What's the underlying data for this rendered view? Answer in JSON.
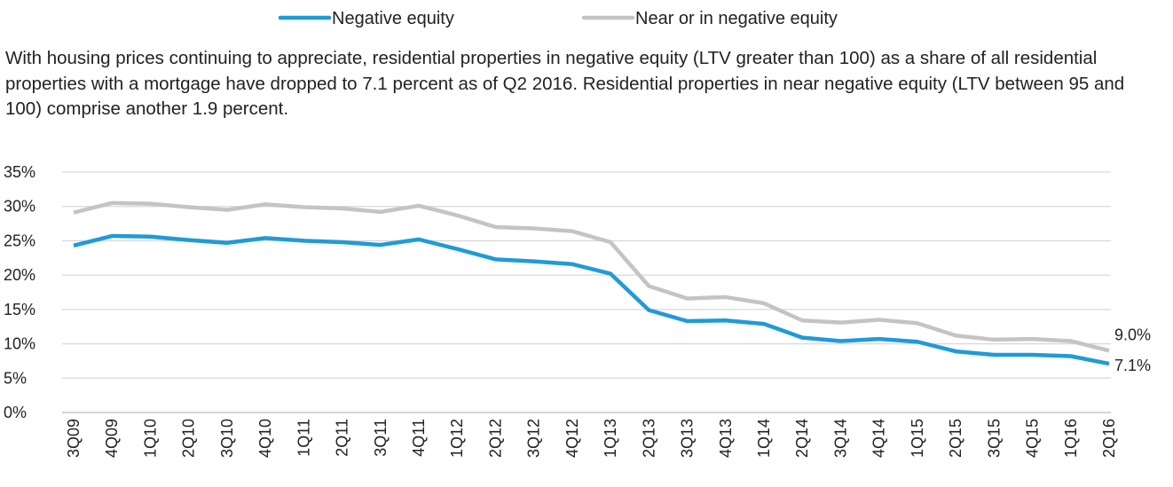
{
  "chart_data": {
    "type": "line",
    "subtitle": "With housing prices continuing to appreciate, residential properties in negative equity (LTV greater than 100) as a share of all residential properties with a mortgage have dropped to 7.1 percent as of Q2 2016. Residential properties in near negative equity (LTV between 95 and 100) comprise another 1.9 percent.",
    "categories": [
      "3Q09",
      "4Q09",
      "1Q10",
      "2Q10",
      "3Q10",
      "4Q10",
      "1Q11",
      "2Q11",
      "3Q11",
      "4Q11",
      "1Q12",
      "2Q12",
      "3Q12",
      "4Q12",
      "1Q13",
      "2Q13",
      "3Q13",
      "4Q13",
      "1Q14",
      "2Q14",
      "3Q14",
      "4Q14",
      "1Q15",
      "2Q15",
      "3Q15",
      "4Q15",
      "1Q16",
      "2Q16"
    ],
    "series": [
      {
        "name": "Negative equity",
        "color": "#1f9bd7",
        "values": [
          24.3,
          25.7,
          25.6,
          25.1,
          24.7,
          25.4,
          25.0,
          24.8,
          24.4,
          25.2,
          23.8,
          22.3,
          22.0,
          21.6,
          20.2,
          14.9,
          13.3,
          13.4,
          12.9,
          10.9,
          10.4,
          10.7,
          10.3,
          8.9,
          8.4,
          8.4,
          8.2,
          7.1
        ],
        "value_labels": [
          null,
          null,
          null,
          null,
          null,
          null,
          null,
          null,
          null,
          null,
          null,
          null,
          null,
          null,
          null,
          null,
          null,
          null,
          null,
          null,
          null,
          null,
          null,
          null,
          null,
          null,
          null,
          "7.1%"
        ]
      },
      {
        "name": "Near or in negative equity",
        "color": "#c4c4c4",
        "values": [
          29.1,
          30.5,
          30.4,
          29.9,
          29.5,
          30.3,
          29.9,
          29.7,
          29.2,
          30.1,
          28.7,
          27.0,
          26.8,
          26.4,
          24.8,
          18.4,
          16.6,
          16.8,
          15.9,
          13.4,
          13.1,
          13.5,
          13.0,
          11.2,
          10.6,
          10.7,
          10.4,
          9.0
        ],
        "value_labels": [
          null,
          null,
          null,
          null,
          null,
          null,
          null,
          null,
          null,
          null,
          null,
          null,
          null,
          null,
          null,
          null,
          null,
          null,
          null,
          null,
          null,
          null,
          null,
          null,
          null,
          null,
          null,
          "9.0%"
        ]
      }
    ],
    "ylim": [
      0,
      35
    ],
    "yticks": [
      {
        "value": 0,
        "label": "0%"
      },
      {
        "value": 5,
        "label": "5%"
      },
      {
        "value": 10,
        "label": "10%"
      },
      {
        "value": 15,
        "label": "15%"
      },
      {
        "value": 20,
        "label": "20%"
      },
      {
        "value": 25,
        "label": "25%"
      },
      {
        "value": 30,
        "label": "30%"
      },
      {
        "value": 35,
        "label": "35%"
      }
    ],
    "grid": true,
    "legend": "top"
  }
}
